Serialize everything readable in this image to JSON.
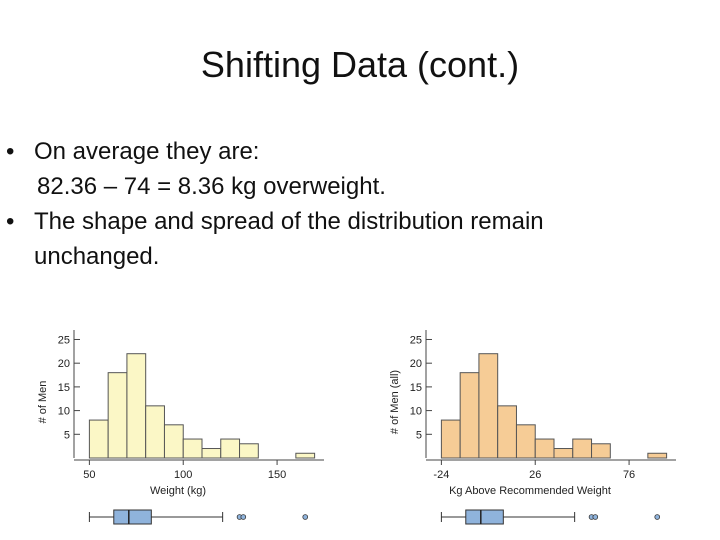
{
  "slide": {
    "title": "Shifting Data (cont.)",
    "bullet1": "On average they are:",
    "bullet1_cont": "82.36 – 74 = 8.36 kg overweight.",
    "bullet2": "The shape and spread of the distribution remain",
    "bullet2_cont": "unchanged.",
    "bullet_glyph": "•"
  },
  "chart_data": [
    {
      "type": "bar",
      "title": "",
      "xlabel": "Weight (kg)",
      "ylabel": "# of Men",
      "bin_edges": [
        50,
        60,
        70,
        80,
        90,
        100,
        110,
        120,
        130,
        140,
        150,
        160,
        170
      ],
      "values": [
        8,
        18,
        22,
        11,
        7,
        4,
        2,
        4,
        3,
        0,
        0,
        1
      ],
      "xticks": [
        50,
        100,
        150
      ],
      "yticks": [
        5,
        10,
        15,
        20,
        25
      ],
      "ylim": [
        0,
        27
      ],
      "xlim": [
        45,
        175
      ],
      "color": "#fbf7c6",
      "box_color": "#8fb3dc",
      "boxplot": {
        "whisker_low": 50,
        "q1": 63,
        "median": 71,
        "q3": 83,
        "whisker_high": 121,
        "outliers": [
          130,
          132,
          165
        ]
      }
    },
    {
      "type": "bar",
      "title": "",
      "xlabel": "Kg Above Recommended Weight",
      "ylabel": "# of Men (all)",
      "bin_edges": [
        -24,
        -14,
        -4,
        6,
        16,
        26,
        36,
        46,
        56,
        66,
        76,
        86,
        96
      ],
      "values": [
        8,
        18,
        22,
        11,
        7,
        4,
        2,
        4,
        3,
        0,
        0,
        1
      ],
      "xticks": [
        -24,
        26,
        76
      ],
      "yticks": [
        5,
        10,
        15,
        20,
        25
      ],
      "ylim": [
        0,
        27
      ],
      "xlim": [
        -29,
        101
      ],
      "color": "#f6cc96",
      "box_color": "#8fb3dc",
      "boxplot": {
        "whisker_low": -24,
        "q1": -11,
        "median": -3,
        "q3": 9,
        "whisker_high": 47,
        "outliers": [
          56,
          58,
          91
        ]
      }
    }
  ]
}
